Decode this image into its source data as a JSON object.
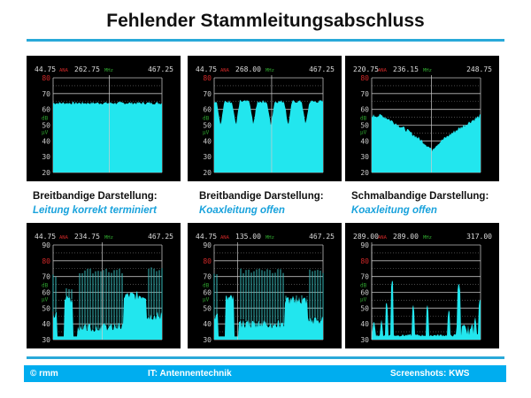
{
  "title": "Fehlender Stammleitungsabschluss",
  "colors": {
    "accent": "#00adef",
    "trace": "#22e6ee",
    "trace_dim": "#36b7b8",
    "ana": "#d02828",
    "units": "#2fa52f"
  },
  "panels": [
    {
      "start": "44.75",
      "mode": "ANA",
      "center": "262.75",
      "unit": "MHz",
      "end": "467.25",
      "scale": [
        "80",
        "70",
        "60",
        "50",
        "40",
        "30",
        "20"
      ],
      "red_label": "80",
      "db": "dB",
      "uv": "µV",
      "marker_fraction": 0.516,
      "trace": {
        "type": "flat",
        "level": 64
      }
    },
    {
      "start": "44.75",
      "mode": "ANA",
      "center": "268.00",
      "unit": "MHz",
      "end": "467.25",
      "scale": [
        "80",
        "70",
        "60",
        "50",
        "40",
        "30",
        "20"
      ],
      "red_label": "80",
      "db": "dB",
      "uv": "µV",
      "marker_fraction": 0.528,
      "trace": {
        "type": "notches",
        "level": 65,
        "notch_depth": 50,
        "notches": [
          0.06,
          0.2,
          0.36,
          0.52,
          0.68,
          0.84
        ]
      }
    },
    {
      "start": "220.75",
      "mode": "ANA",
      "center": "236.15",
      "unit": "MHz",
      "end": "248.75",
      "scale": [
        "80",
        "70",
        "60",
        "50",
        "40",
        "30",
        "20"
      ],
      "red_label": "80",
      "db": "dB",
      "uv": "µV",
      "marker_fraction": 0.55,
      "trace": {
        "type": "vdip",
        "level": 56,
        "dip_level": 34,
        "dip_at": 0.55
      }
    },
    {
      "start": "44.75",
      "mode": "ANA",
      "center": "234.75",
      "unit": "MHz",
      "end": "467.25",
      "scale": [
        "90",
        "80",
        "70",
        "60",
        "50",
        "40",
        "30"
      ],
      "red_label": "80",
      "db": "dB",
      "uv": "µV",
      "marker_fraction": 0.45,
      "trace": {
        "type": "comb",
        "floor": 32,
        "segments": [
          {
            "from": 0,
            "to": 0.035,
            "base": 45,
            "peak": 72
          },
          {
            "from": 0.035,
            "to": 0.1,
            "base": 32,
            "peak": 32
          },
          {
            "from": 0.1,
            "to": 0.18,
            "base": 56,
            "peak": 63
          },
          {
            "from": 0.18,
            "to": 0.225,
            "base": 32,
            "peak": 32
          },
          {
            "from": 0.225,
            "to": 0.65,
            "base": 38,
            "peak": 75
          },
          {
            "from": 0.65,
            "to": 0.86,
            "base": 58,
            "peak": 59
          },
          {
            "from": 0.86,
            "to": 1,
            "base": 45,
            "peak": 76
          }
        ]
      }
    },
    {
      "start": "44.75",
      "mode": "ANA",
      "center": "135.00",
      "unit": "MHz",
      "end": "467.25",
      "scale": [
        "90",
        "80",
        "70",
        "60",
        "50",
        "40",
        "30"
      ],
      "red_label": "80",
      "db": "dB",
      "uv": "µV",
      "marker_fraction": 0.214,
      "trace": {
        "type": "comb",
        "floor": 32,
        "segments": [
          {
            "from": 0,
            "to": 0.035,
            "base": 45,
            "peak": 72
          },
          {
            "from": 0.035,
            "to": 0.1,
            "base": 32,
            "peak": 32
          },
          {
            "from": 0.1,
            "to": 0.18,
            "base": 56,
            "peak": 59
          },
          {
            "from": 0.18,
            "to": 0.22,
            "base": 32,
            "peak": 32
          },
          {
            "from": 0.22,
            "to": 0.65,
            "base": 40,
            "peak": 75
          },
          {
            "from": 0.65,
            "to": 0.86,
            "base": 55,
            "peak": 59
          },
          {
            "from": 0.86,
            "to": 1,
            "base": 42,
            "peak": 75
          }
        ]
      }
    },
    {
      "start": "289.00",
      "mode": "ANA",
      "center": "289.00",
      "unit": "MHz",
      "end": "317.00",
      "scale": [
        "90",
        "80",
        "70",
        "60",
        "50",
        "40",
        "30"
      ],
      "red_label": "80",
      "db": "dB",
      "uv": "µV",
      "marker_fraction": 0.0,
      "trace": {
        "type": "spikes",
        "floor": 32,
        "spikes": [
          {
            "at": 0.02,
            "level": 43
          },
          {
            "at": 0.09,
            "level": 43
          },
          {
            "at": 0.135,
            "level": 55
          },
          {
            "at": 0.19,
            "level": 69
          },
          {
            "at": 0.38,
            "level": 53
          },
          {
            "at": 0.51,
            "level": 53
          },
          {
            "at": 0.71,
            "level": 50
          },
          {
            "at": 0.8,
            "level": 67
          },
          {
            "at": 0.95,
            "level": 45
          },
          {
            "at": 0.995,
            "level": 57
          }
        ]
      }
    }
  ],
  "captions": [
    {
      "line1": "Breitbandige Darstellung:",
      "line2": "Leitung korrekt terminiert"
    },
    {
      "line1": "Breitbandige Darstellung:",
      "line2": "Koaxleitung offen"
    },
    {
      "line1": "Schmalbandige  Darstellung:",
      "line2": "Koaxleitung offen"
    }
  ],
  "footer": {
    "copyright": "© rmm",
    "topic": "IT: Antennentechnik",
    "credit": "Screenshots: KWS"
  }
}
